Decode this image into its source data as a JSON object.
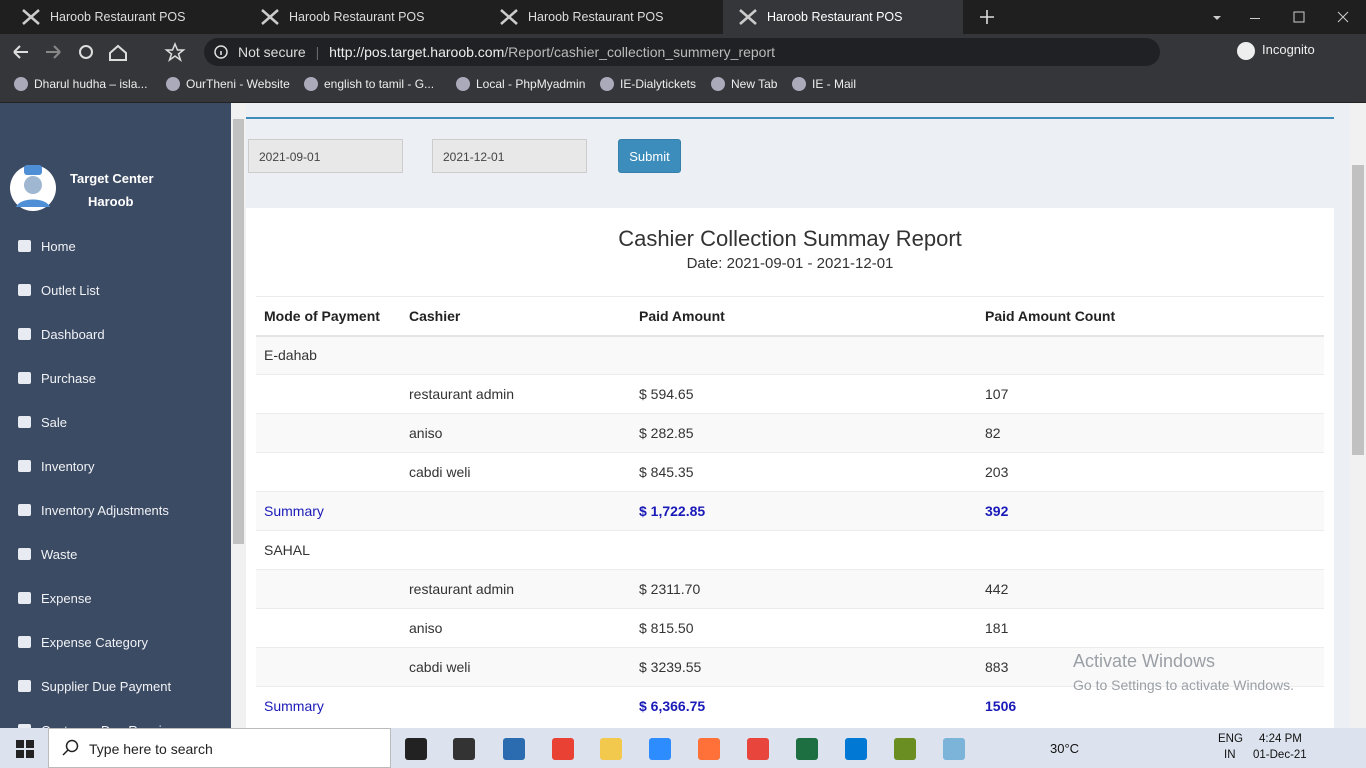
{
  "browser": {
    "tabs": [
      "Haroob Restaurant POS",
      "Haroob Restaurant POS",
      "Haroob Restaurant POS",
      "Haroob Restaurant POS"
    ],
    "security": "Not secure",
    "url_host": "http://pos.target.haroob.com",
    "url_path": "/Report/cashier_collection_summery_report",
    "profile": "Incognito",
    "bookmarks": [
      "Dharul hudha – isla...",
      "OurTheni - Website",
      "english to tamil - G...",
      "Local - PhpMyadmin",
      "IE-Dialytickets",
      "New Tab",
      "IE - Mail"
    ]
  },
  "sidebar": {
    "brand_line1": "Target Center",
    "brand_line2": "Haroob",
    "menu": [
      "Home",
      "Outlet List",
      "Dashboard",
      "Purchase",
      "Sale",
      "Inventory",
      "Inventory Adjustments",
      "Waste",
      "Expense",
      "Expense Category",
      "Supplier Due Payment",
      "Customer Due Receive"
    ]
  },
  "filter": {
    "from": "2021-09-01",
    "to": "2021-12-01",
    "submit": "Submit"
  },
  "report": {
    "title": "Cashier Collection Summay Report",
    "date": "Date: 2021-09-01 - 2021-12-01",
    "headers": [
      "Mode of Payment",
      "Cashier",
      "Paid Amount",
      "Paid Amount Count"
    ],
    "groups": [
      {
        "mode": "E-dahab",
        "rows": [
          {
            "cashier": "restaurant admin",
            "paid": "$ 594.65",
            "count": "107"
          },
          {
            "cashier": "aniso",
            "paid": "$ 282.85",
            "count": "82"
          },
          {
            "cashier": "cabdi weli",
            "paid": "$ 845.35",
            "count": "203"
          }
        ],
        "summary": {
          "label": "Summary",
          "paid": "$ 1,722.85",
          "count": "392"
        }
      },
      {
        "mode": "SAHAL",
        "rows": [
          {
            "cashier": "restaurant admin",
            "paid": "$ 2311.70",
            "count": "442"
          },
          {
            "cashier": "aniso",
            "paid": "$ 815.50",
            "count": "181"
          },
          {
            "cashier": "cabdi weli",
            "paid": "$ 3239.55",
            "count": "883"
          }
        ],
        "summary": {
          "label": "Summary",
          "paid": "$ 6,366.75",
          "count": "1506"
        }
      }
    ]
  },
  "watermark": {
    "title": "Activate Windows",
    "subtitle": "Go to Settings to activate Windows."
  },
  "taskbar": {
    "search": "Type here to search",
    "weather": "30°C",
    "lang": "ENG",
    "region": "IN",
    "time": "4:24 PM",
    "date": "01-Dec-21"
  }
}
